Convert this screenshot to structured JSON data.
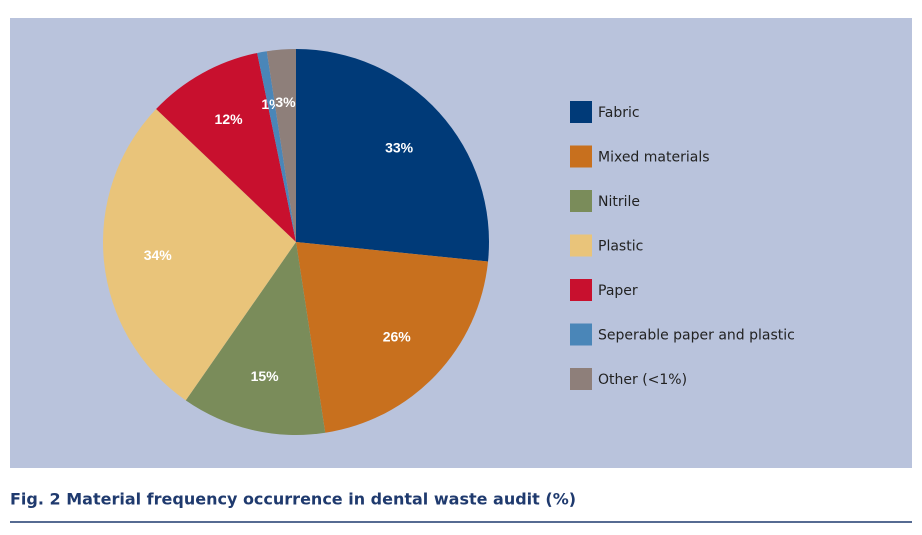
{
  "chart_data": {
    "type": "pie",
    "title": "Fig. 2  Material frequency occurrence in dental waste audit (%)",
    "categories": [
      "Fabric",
      "Mixed materials",
      "Nitrile",
      "Plastic",
      "Paper",
      "Seperable paper and plastic",
      "Other (<1%)"
    ],
    "values": [
      33,
      26,
      15,
      34,
      12,
      1,
      3
    ],
    "value_labels": [
      "33%",
      "26%",
      "15%",
      "34%",
      "12%",
      "1%",
      "3%"
    ],
    "colors": [
      "#003a78",
      "#c8701e",
      "#7a8c5a",
      "#e9c47a",
      "#c8102e",
      "#4a86b8",
      "#8e7f7a"
    ],
    "legend": "right"
  }
}
